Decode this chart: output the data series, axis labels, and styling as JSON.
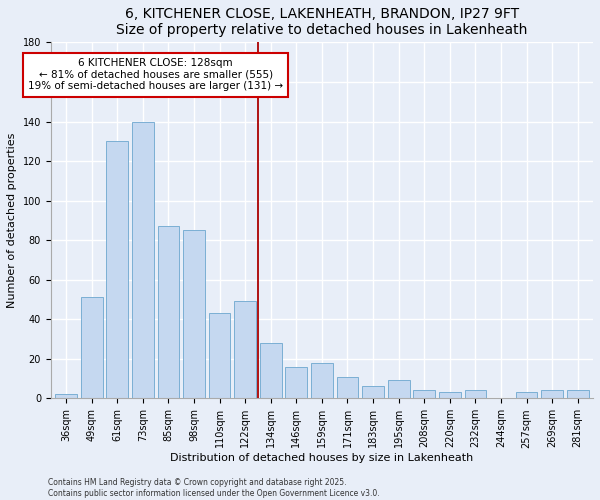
{
  "title": "6, KITCHENER CLOSE, LAKENHEATH, BRANDON, IP27 9FT",
  "subtitle": "Size of property relative to detached houses in Lakenheath",
  "xlabel": "Distribution of detached houses by size in Lakenheath",
  "ylabel": "Number of detached properties",
  "categories": [
    "36sqm",
    "49sqm",
    "61sqm",
    "73sqm",
    "85sqm",
    "98sqm",
    "110sqm",
    "122sqm",
    "134sqm",
    "146sqm",
    "159sqm",
    "171sqm",
    "183sqm",
    "195sqm",
    "208sqm",
    "220sqm",
    "232sqm",
    "244sqm",
    "257sqm",
    "269sqm",
    "281sqm"
  ],
  "values": [
    2,
    51,
    130,
    140,
    87,
    85,
    43,
    49,
    28,
    16,
    18,
    11,
    6,
    9,
    4,
    3,
    4,
    0,
    3,
    4,
    4
  ],
  "bar_color": "#c5d8f0",
  "bar_edge_color": "#7bafd4",
  "vline_x": 7.5,
  "vline_color": "#aa0000",
  "annotation_title": "6 KITCHENER CLOSE: 128sqm",
  "annotation_line1": "← 81% of detached houses are smaller (555)",
  "annotation_line2": "19% of semi-detached houses are larger (131) →",
  "ylim": [
    0,
    180
  ],
  "yticks": [
    0,
    20,
    40,
    60,
    80,
    100,
    120,
    140,
    160,
    180
  ],
  "footer1": "Contains HM Land Registry data © Crown copyright and database right 2025.",
  "footer2": "Contains public sector information licensed under the Open Government Licence v3.0.",
  "bg_color": "#e8eef8",
  "grid_color": "#ffffff",
  "title_fontsize": 10,
  "subtitle_fontsize": 9,
  "label_fontsize": 8,
  "tick_fontsize": 7,
  "ann_fontsize": 7.5
}
